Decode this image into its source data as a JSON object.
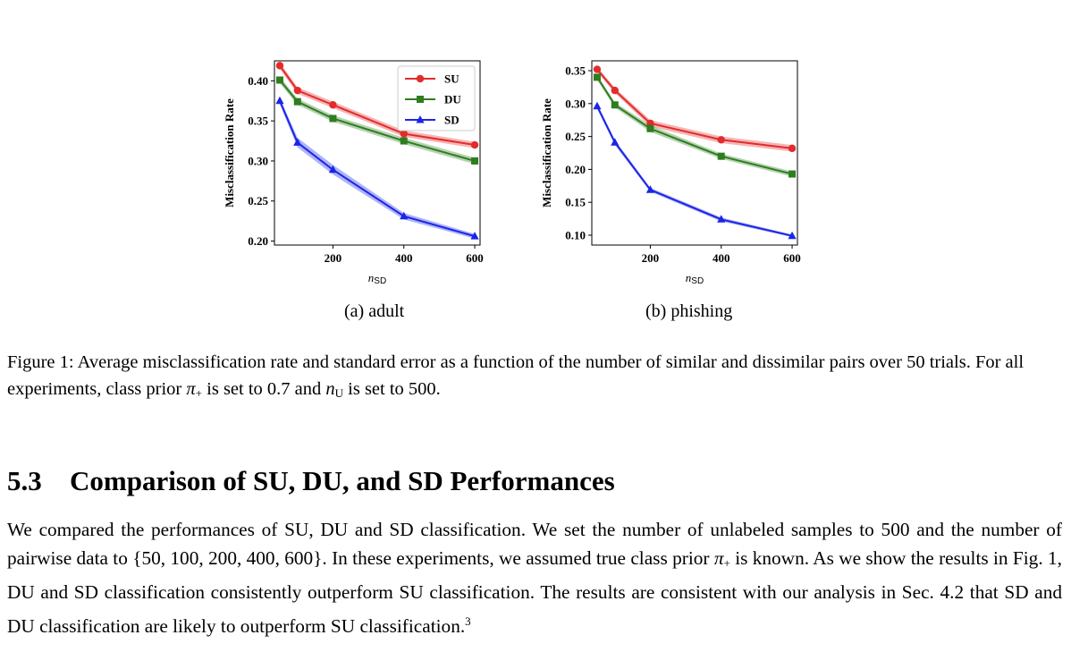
{
  "chart_data": [
    {
      "type": "line",
      "subcaption": "(a) adult",
      "xlabel_base": "n",
      "xlabel_sub": "SD",
      "ylabel": "Misclassification Rate",
      "xlim": [
        35,
        615
      ],
      "ylim": [
        0.195,
        0.425
      ],
      "xticks": [
        200,
        400,
        600
      ],
      "yticks": [
        0.2,
        0.25,
        0.3,
        0.35,
        0.4
      ],
      "ytick_labels": [
        "0.20",
        "0.25",
        "0.30",
        "0.35",
        "0.40"
      ],
      "legend": "top-right",
      "x": [
        50,
        100,
        200,
        400,
        600
      ],
      "series": [
        {
          "name": "SU",
          "color": "#e32b2b",
          "marker": "circle",
          "values": [
            0.419,
            0.388,
            0.37,
            0.334,
            0.32
          ],
          "err": [
            0.004,
            0.004,
            0.004,
            0.004,
            0.004
          ]
        },
        {
          "name": "DU",
          "color": "#2e7d1f",
          "marker": "square",
          "values": [
            0.401,
            0.374,
            0.353,
            0.325,
            0.3
          ],
          "err": [
            0.004,
            0.004,
            0.004,
            0.004,
            0.004
          ]
        },
        {
          "name": "SD",
          "color": "#1a25e8",
          "marker": "triangle",
          "values": [
            0.375,
            0.323,
            0.289,
            0.231,
            0.206
          ],
          "err": [
            0.004,
            0.006,
            0.006,
            0.004,
            0.003
          ]
        }
      ]
    },
    {
      "type": "line",
      "subcaption": "(b) phishing",
      "xlabel_base": "n",
      "xlabel_sub": "SD",
      "ylabel": "Misclassification Rate",
      "xlim": [
        35,
        615
      ],
      "ylim": [
        0.085,
        0.365
      ],
      "xticks": [
        200,
        400,
        600
      ],
      "yticks": [
        0.1,
        0.15,
        0.2,
        0.25,
        0.3,
        0.35
      ],
      "ytick_labels": [
        "0.10",
        "0.15",
        "0.20",
        "0.25",
        "0.30",
        "0.35"
      ],
      "legend": "none",
      "x": [
        50,
        100,
        200,
        400,
        600
      ],
      "series": [
        {
          "name": "SU",
          "color": "#e32b2b",
          "marker": "circle",
          "values": [
            0.352,
            0.32,
            0.27,
            0.245,
            0.232
          ],
          "err": [
            0.004,
            0.004,
            0.005,
            0.005,
            0.005
          ]
        },
        {
          "name": "DU",
          "color": "#2e7d1f",
          "marker": "square",
          "values": [
            0.34,
            0.298,
            0.262,
            0.22,
            0.193
          ],
          "err": [
            0.004,
            0.004,
            0.005,
            0.004,
            0.004
          ]
        },
        {
          "name": "SD",
          "color": "#1a25e8",
          "marker": "triangle",
          "values": [
            0.296,
            0.241,
            0.169,
            0.124,
            0.099
          ],
          "err": [
            0.004,
            0.004,
            0.003,
            0.003,
            0.002
          ]
        }
      ]
    }
  ],
  "figure_caption": {
    "p1": "Figure 1: Average misclassification rate and standard error as a function of the number of similar and dissimilar pairs over 50 trials. For all experiments, class prior ",
    "pi": "π",
    "plus": "+",
    "p2": " is set to 0.7 and ",
    "n": "n",
    "u": "U",
    "p3": " is set to 500."
  },
  "section": {
    "number": "5.3",
    "title": "Comparison of SU, DU, and SD Performances"
  },
  "body": {
    "p1": "We compared the performances of SU, DU and SD classification. We set the number of unlabeled samples to 500 and the number of pairwise data to {50, 100, 200, 400, 600}. In these experiments, we assumed true class prior ",
    "pi": "π",
    "plus": "+",
    "p2": " is known. As we show the results in Fig. 1, DU and SD classification consistently outperform SU classification. The results are consistent with our analysis in Sec. 4.2 that SD and DU classification are likely to outperform SU classification.",
    "footnote_mark": "3"
  }
}
